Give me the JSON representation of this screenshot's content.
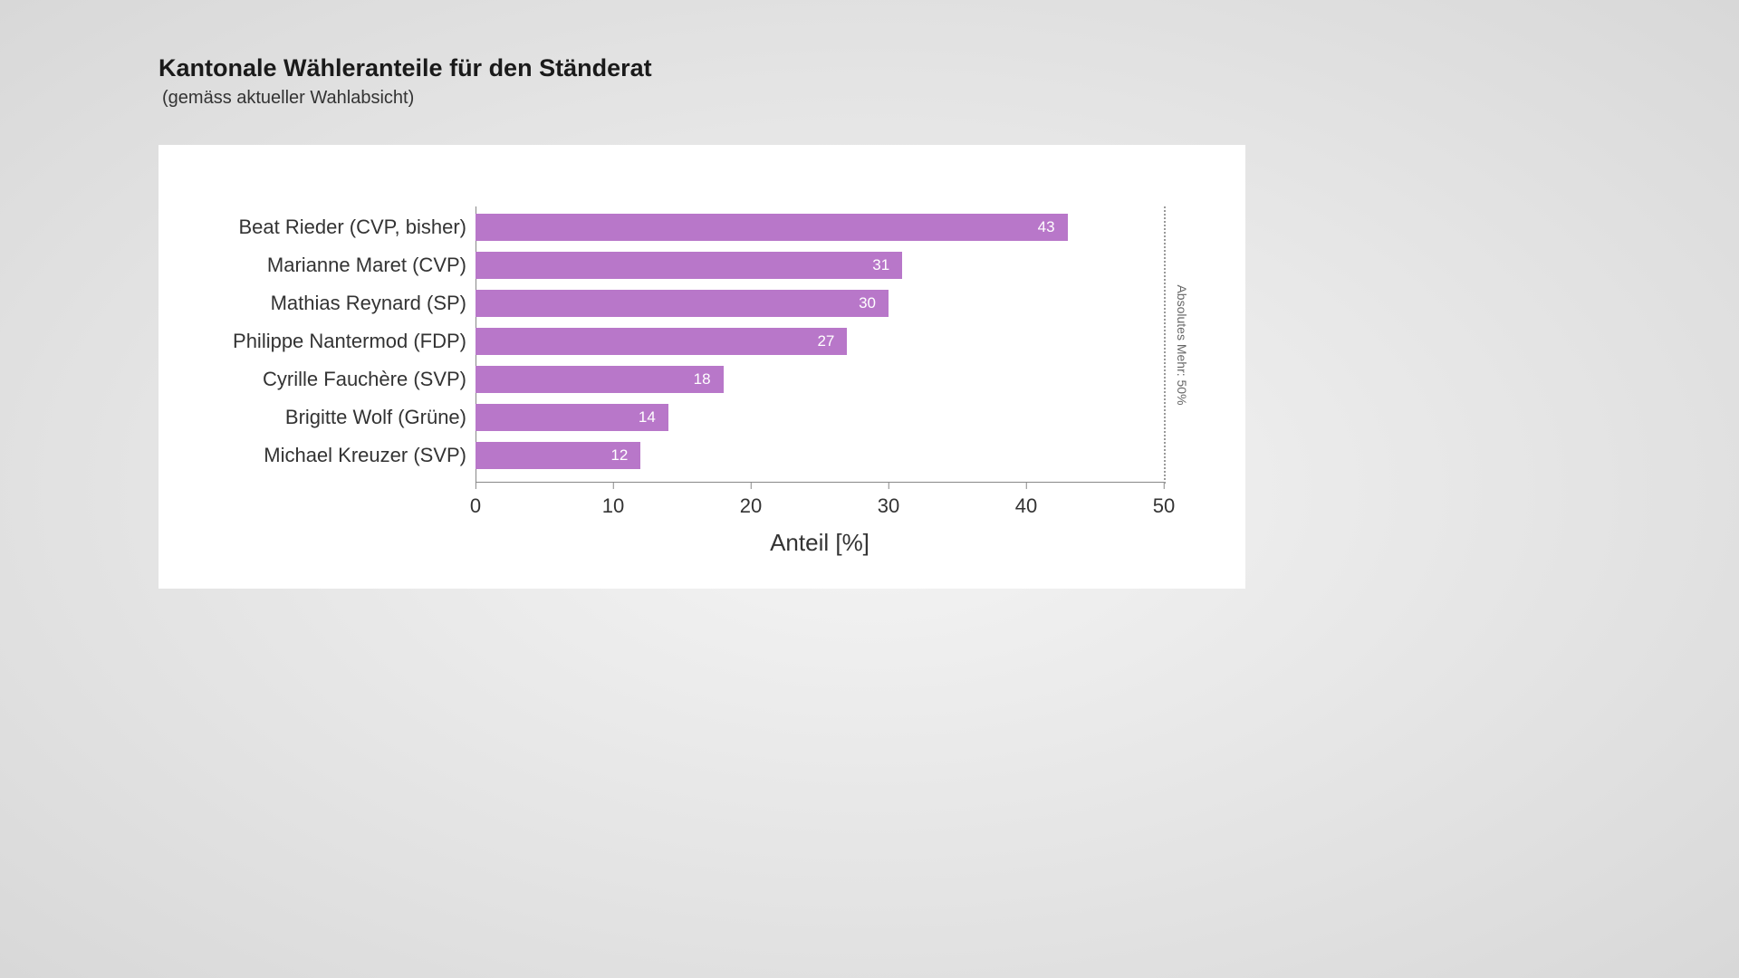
{
  "title": "Kantonale Wähleranteile für den Ständerat",
  "subtitle": "(gemäss aktueller Wahlabsicht)",
  "chart": {
    "type": "bar-horizontal",
    "x_label": "Anteil [%]",
    "x_min": 0,
    "x_max": 50,
    "x_ticks": [
      0,
      10,
      20,
      30,
      40,
      50
    ],
    "bar_color": "#b877c9",
    "bar_value_color": "#ffffff",
    "background_color": "#ffffff",
    "axis_color": "#888888",
    "text_color": "#333333",
    "title_fontsize": 27,
    "subtitle_fontsize": 20,
    "label_fontsize": 22,
    "tick_fontsize": 22,
    "axis_title_fontsize": 26,
    "bar_value_fontsize": 17,
    "reference_line": {
      "value": 50,
      "label": "Absolutes Mehr:\n50%",
      "style": "dotted",
      "color": "#999999"
    },
    "data": [
      {
        "label": "Beat Rieder (CVP, bisher)",
        "value": 43
      },
      {
        "label": "Marianne Maret (CVP)",
        "value": 31
      },
      {
        "label": "Mathias Reynard (SP)",
        "value": 30
      },
      {
        "label": "Philippe Nantermod (FDP)",
        "value": 27
      },
      {
        "label": "Cyrille Fauchère (SVP)",
        "value": 18
      },
      {
        "label": "Brigitte Wolf (Grüne)",
        "value": 14
      },
      {
        "label": "Michael Kreuzer (SVP)",
        "value": 12
      }
    ]
  }
}
